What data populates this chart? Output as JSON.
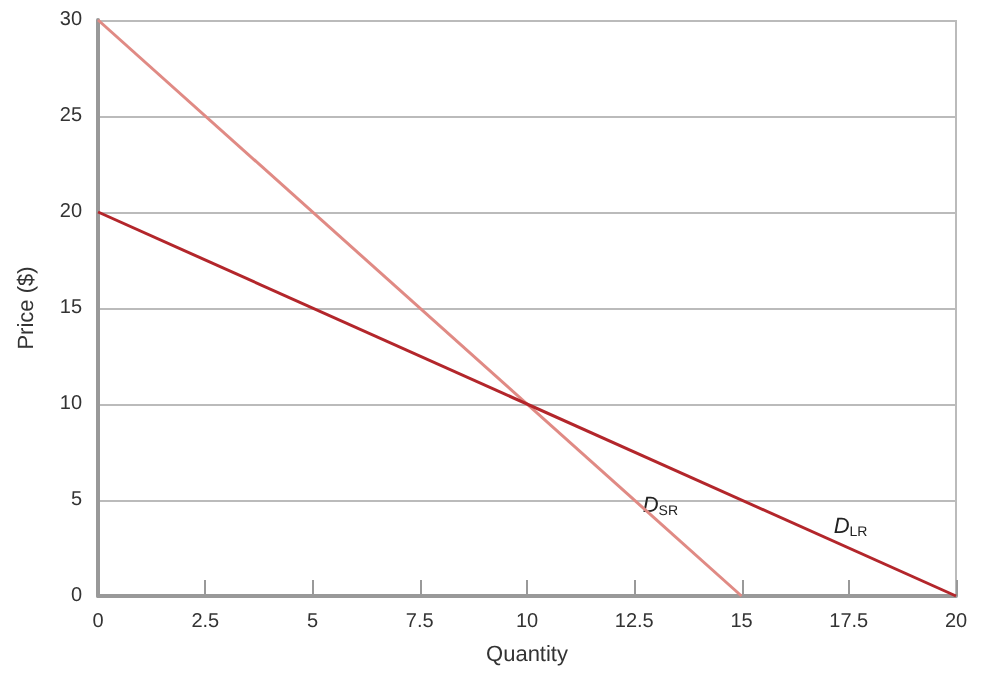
{
  "chart_data": {
    "type": "line",
    "xlabel": "Quantity",
    "ylabel": "Price ($)",
    "xlim": [
      0,
      20
    ],
    "xticks": [
      0,
      2.5,
      5,
      7.5,
      10,
      12.5,
      15,
      17.5,
      20
    ],
    "ylim": [
      0,
      30
    ],
    "yticks": [
      0,
      5,
      10,
      15,
      20,
      25,
      30
    ],
    "grid": "y",
    "marker": "none",
    "line_style": "solid",
    "series": [
      {
        "name": "D$_{SR}$",
        "color": "#e08a84",
        "x": [
          0,
          15
        ],
        "values": [
          30,
          0
        ]
      },
      {
        "name": "D$_{LR}$",
        "color": "#b3262b",
        "x": [
          0,
          20
        ],
        "values": [
          20,
          0
        ]
      }
    ]
  }
}
